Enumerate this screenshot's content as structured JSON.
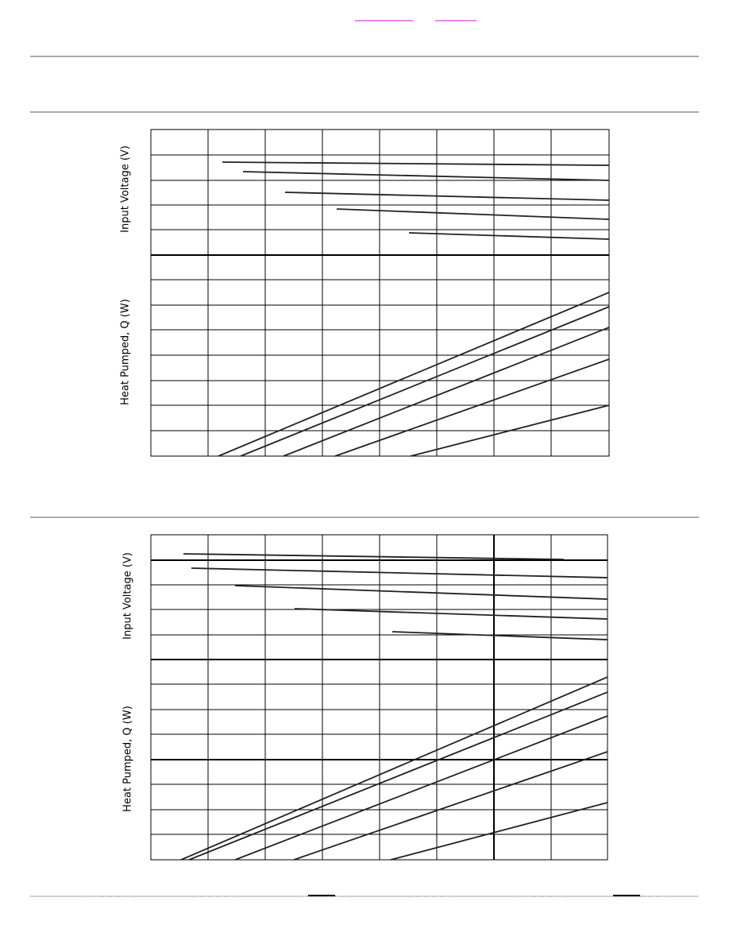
{
  "charts": [
    {
      "upper_label": "Input Voltage (V)",
      "lower_label": "Heat Pumped, Q (W)"
    },
    {
      "upper_label": "Input Voltage (V)",
      "lower_label": "Heat Pumped, Q (W)"
    }
  ]
}
